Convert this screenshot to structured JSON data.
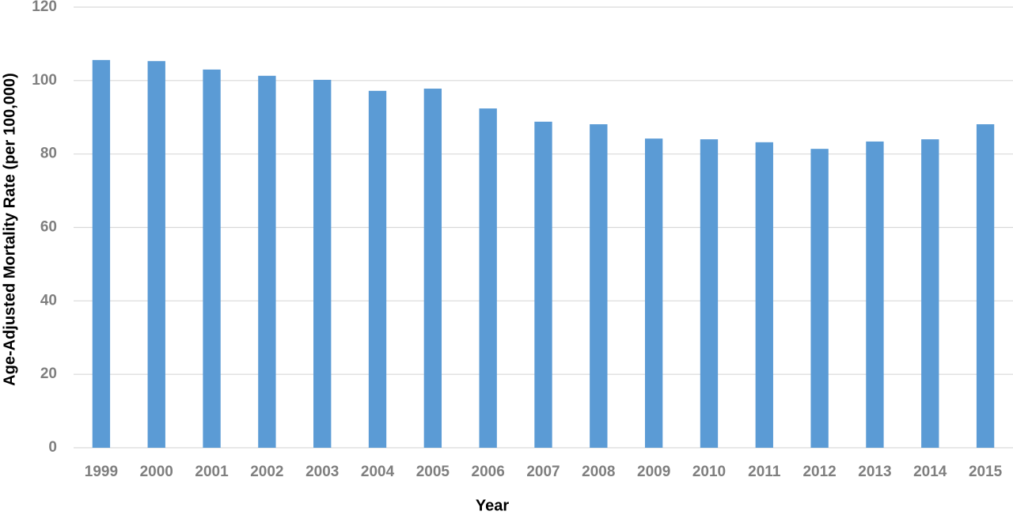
{
  "chart_data": {
    "type": "bar",
    "x_label": "Year",
    "y_label": "Age-Adjusted Mortality Rate (per 100,000)",
    "categories": [
      "1999",
      "2000",
      "2001",
      "2002",
      "2003",
      "2004",
      "2005",
      "2006",
      "2007",
      "2008",
      "2009",
      "2010",
      "2011",
      "2012",
      "2013",
      "2014",
      "2015"
    ],
    "values": [
      105.6,
      105.3,
      103.0,
      101.3,
      100.2,
      97.2,
      97.8,
      92.4,
      88.8,
      88.1,
      84.2,
      84.0,
      83.2,
      81.4,
      83.4,
      84.0,
      88.1
    ],
    "color": "#5b9bd5",
    "ylim": [
      0,
      120
    ],
    "yticks": [
      0,
      20,
      40,
      60,
      80,
      100,
      120
    ],
    "grid": true
  }
}
